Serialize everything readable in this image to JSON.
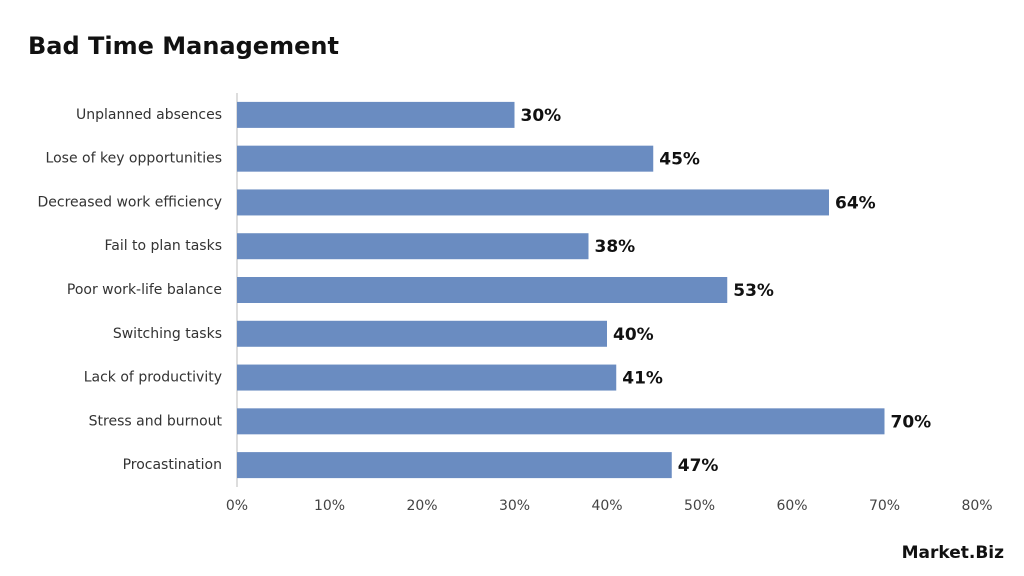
{
  "chart_data": {
    "type": "bar",
    "orientation": "horizontal",
    "title": "Bad Time Management",
    "categories": [
      "Unplanned absences",
      "Lose of key opportunities",
      "Decreased work efficiency",
      "Fail to plan tasks",
      "Poor work-life balance",
      "Switching tasks",
      "Lack of productivity",
      "Stress and burnout",
      "Procastination"
    ],
    "values": [
      30,
      45,
      64,
      38,
      53,
      40,
      41,
      70,
      47
    ],
    "value_labels": [
      "30%",
      "45%",
      "64%",
      "38%",
      "53%",
      "40%",
      "41%",
      "70%",
      "47%"
    ],
    "color": "#6a8cc1",
    "xlim": [
      0,
      80
    ],
    "xticks": [
      {
        "value": 0,
        "label": "0%"
      },
      {
        "value": 10,
        "label": "10%"
      },
      {
        "value": 20,
        "label": "20%"
      },
      {
        "value": 30,
        "label": "30%"
      },
      {
        "value": 40,
        "label": "40%"
      },
      {
        "value": 50,
        "label": "50%"
      },
      {
        "value": 60,
        "label": "60%"
      },
      {
        "value": 70,
        "label": "70%"
      },
      {
        "value": 80,
        "label": "80%"
      }
    ],
    "grid": false,
    "logo": "Market.Biz"
  }
}
